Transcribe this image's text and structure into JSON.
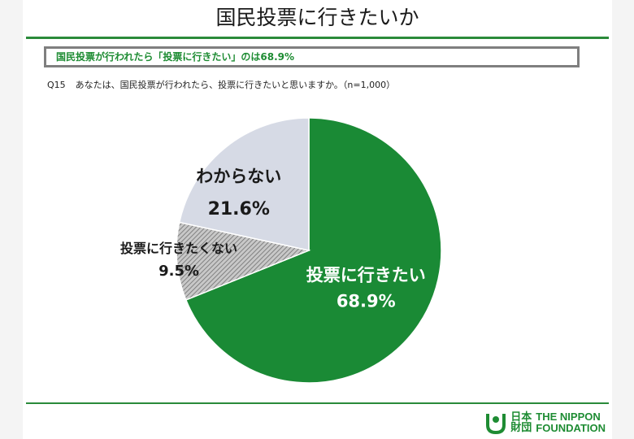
{
  "slide": {
    "title": "国民投票に行きたいか",
    "headline": "国民投票が行われたら「投票に行きたい」のは68.9%",
    "question_no": "Q15",
    "question_text": "あなたは、国民投票が行われたら、投票に行きたいと思いますか。（n=1,000）"
  },
  "colors": {
    "accent": "#1e8c33",
    "rule": "#2a8a3a",
    "slice_want": "#1a8a35",
    "slice_dont": "#bdbdbd",
    "slice_unknown": "#d6dae5"
  },
  "chart_data": {
    "type": "pie",
    "title": "",
    "slices": [
      {
        "label": "投票に行きたい",
        "value": 68.9,
        "value_label": "68.9%",
        "color": "#1a8a35",
        "pattern": "solid"
      },
      {
        "label": "投票に行きたくない",
        "value": 9.5,
        "value_label": "9.5%",
        "color": "#bdbdbd",
        "pattern": "hatch"
      },
      {
        "label": "わからない",
        "value": 21.6,
        "value_label": "21.6%",
        "color": "#d6dae5",
        "pattern": "solid"
      }
    ],
    "start": "top",
    "direction": "clockwise"
  },
  "footer": {
    "logo_jp_line1": "日本",
    "logo_jp_line2": "財団",
    "logo_en_line1": "THE NIPPON",
    "logo_en_line2": "FOUNDATION"
  }
}
